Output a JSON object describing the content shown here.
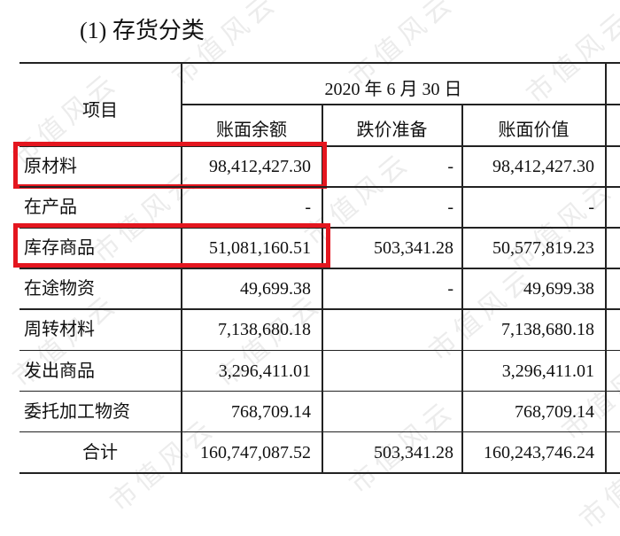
{
  "title": "(1) 存货分类",
  "watermark": "市值风云",
  "table": {
    "item_header": "项目",
    "period_header": "2020 年 6 月 30 日",
    "columns": [
      "账面余额",
      "跌价准备",
      "账面价值"
    ],
    "rows": [
      {
        "item": "原材料",
        "balance": "98,412,427.30",
        "provision": "-",
        "book_value": "98,412,427.30",
        "highlighted": true
      },
      {
        "item": "在产品",
        "balance": "-",
        "provision": "-",
        "book_value": "-",
        "highlighted": false
      },
      {
        "item": "库存商品",
        "balance": "51,081,160.51",
        "provision": "503,341.28",
        "book_value": "50,577,819.23",
        "highlighted": true
      },
      {
        "item": "在途物资",
        "balance": "49,699.38",
        "provision": "-",
        "book_value": "49,699.38",
        "highlighted": false
      },
      {
        "item": "周转材料",
        "balance": "7,138,680.18",
        "provision": "",
        "book_value": "7,138,680.18",
        "highlighted": false
      },
      {
        "item": "发出商品",
        "balance": "3,296,411.01",
        "provision": "",
        "book_value": "3,296,411.01",
        "highlighted": false
      },
      {
        "item": "委托加工物资",
        "balance": "768,709.14",
        "provision": "",
        "book_value": "768,709.14",
        "highlighted": false
      }
    ],
    "total": {
      "item": "合计",
      "balance": "160,747,087.52",
      "provision": "503,341.28",
      "book_value": "160,243,746.24"
    }
  },
  "highlight_color": "#e4161f"
}
